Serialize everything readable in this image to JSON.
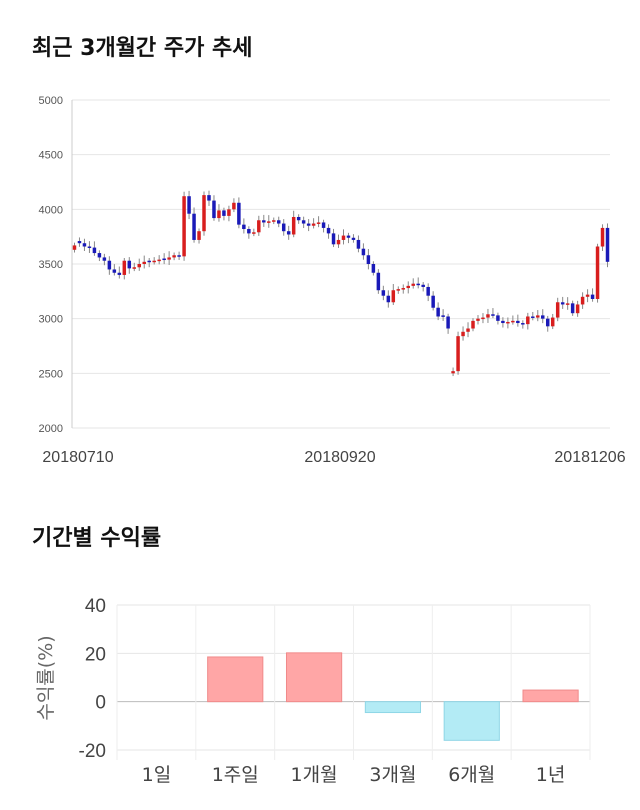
{
  "section1": {
    "title": "최근 3개월간 주가 추세"
  },
  "section2": {
    "title": "기간별 수익률"
  },
  "chart_data": [
    {
      "type": "candlestick",
      "title": "최근 3개월간 주가 추세",
      "ylim": [
        2000,
        5000
      ],
      "y_ticks": [
        5000,
        4500,
        4000,
        3500,
        3000,
        2500,
        2000
      ],
      "x_tick_labels": [
        "20180710",
        "20180920",
        "20181206"
      ],
      "grid": true,
      "up_color": "#d81e1e",
      "down_color": "#1a1ab8",
      "close": [
        3670,
        3690,
        3660,
        3650,
        3600,
        3560,
        3530,
        3450,
        3420,
        3400,
        3530,
        3460,
        3470,
        3500,
        3520,
        3520,
        3530,
        3540,
        3540,
        3560,
        3580,
        3570,
        4120,
        3960,
        3720,
        3800,
        4130,
        4080,
        3920,
        3990,
        3940,
        4000,
        4060,
        3860,
        3820,
        3780,
        3790,
        3900,
        3880,
        3890,
        3900,
        3870,
        3800,
        3770,
        3930,
        3900,
        3870,
        3850,
        3870,
        3880,
        3830,
        3780,
        3680,
        3720,
        3760,
        3740,
        3720,
        3640,
        3580,
        3500,
        3420,
        3260,
        3210,
        3150,
        3260,
        3270,
        3280,
        3300,
        3320,
        3310,
        3290,
        3210,
        3100,
        3020,
        3020,
        2910,
        2520,
        2840,
        2880,
        2910,
        2980,
        3000,
        3010,
        3040,
        3030,
        2980,
        2960,
        2970,
        2980,
        2960,
        2950,
        3020,
        3010,
        3030,
        3000,
        2930,
        3010,
        3150,
        3130,
        3140,
        3050,
        3130,
        3200,
        3220,
        3180,
        3660,
        3830,
        3520
      ],
      "up_flags": [
        1,
        0,
        0,
        0,
        0,
        0,
        0,
        0,
        0,
        0,
        1,
        0,
        1,
        1,
        1,
        0,
        1,
        1,
        0,
        1,
        1,
        0,
        1,
        0,
        0,
        1,
        1,
        0,
        0,
        1,
        0,
        1,
        1,
        0,
        0,
        0,
        1,
        1,
        0,
        1,
        1,
        0,
        0,
        0,
        1,
        0,
        0,
        0,
        1,
        1,
        0,
        0,
        0,
        1,
        1,
        0,
        0,
        0,
        0,
        0,
        0,
        0,
        0,
        0,
        1,
        1,
        1,
        1,
        1,
        0,
        0,
        0,
        0,
        0,
        0,
        0,
        1,
        1,
        1,
        1,
        1,
        1,
        1,
        1,
        0,
        0,
        0,
        1,
        1,
        0,
        0,
        1,
        0,
        1,
        0,
        0,
        1,
        1,
        0,
        1,
        0,
        1,
        1,
        1,
        0,
        1,
        1,
        0
      ]
    },
    {
      "type": "bar",
      "title": "기간별 수익률",
      "ylabel": "수익률(%)",
      "ylim": [
        -20,
        40
      ],
      "y_ticks": [
        40,
        20,
        0,
        -20
      ],
      "categories": [
        "1일",
        "1주일",
        "1개월",
        "3개월",
        "6개월",
        "1년"
      ],
      "values": [
        0,
        18.5,
        20.2,
        -4.5,
        -16,
        4.8
      ],
      "positive_color": "#ffa6a6",
      "negative_color": "#b3ebf5",
      "grid": true
    }
  ]
}
